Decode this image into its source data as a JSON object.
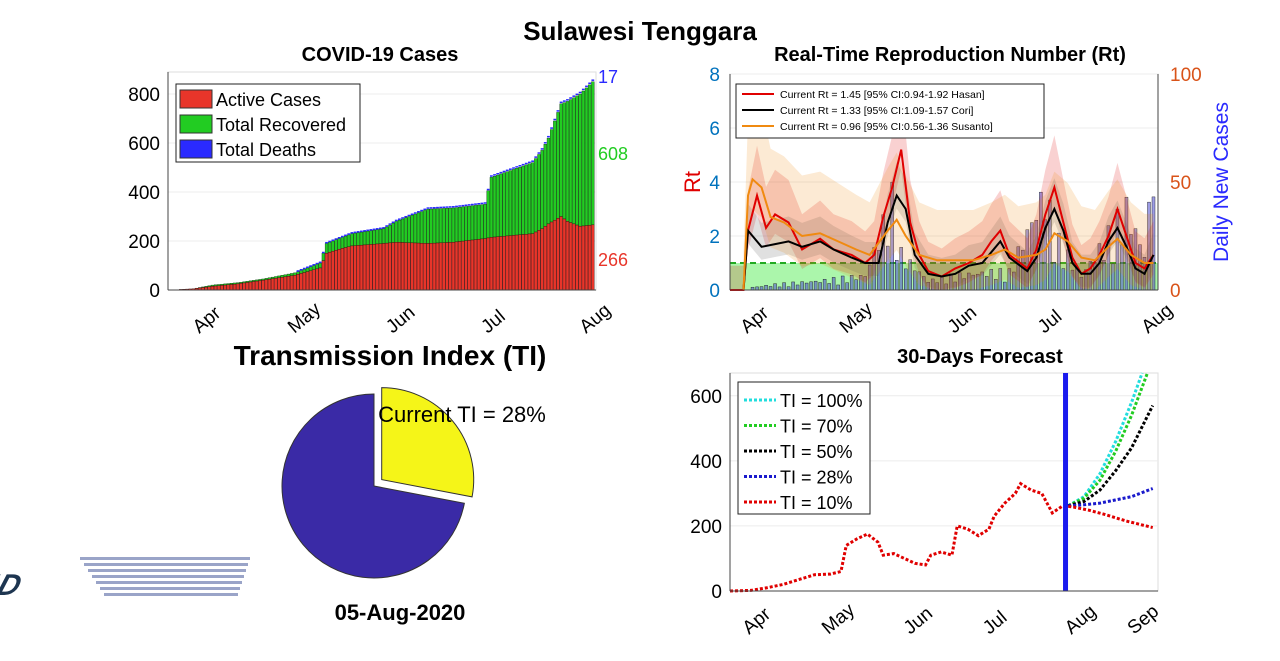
{
  "page": {
    "title": "Sulawesi Tenggara",
    "date": "05-Aug-2020",
    "logo_text": "COVID"
  },
  "colors": {
    "active": "#e8352a",
    "recovered": "#22cc22",
    "deaths": "#2a2aff",
    "rt_hasan": "#e00000",
    "rt_cori": "#000000",
    "rt_susanto": "#f08a10",
    "rt_axis": "#0072bd",
    "cases_axis": "#d95319",
    "pie_main": "#3a2aa6",
    "pie_slice": "#f5f518"
  },
  "chart_data": [
    {
      "id": "cases",
      "type": "bar",
      "title": "COVID-19 Cases",
      "x_tick_labels": [
        "Apr",
        "May",
        "Jun",
        "Jul",
        "Aug"
      ],
      "y_ticks": [
        0,
        200,
        400,
        600,
        800
      ],
      "ylim": [
        0,
        890
      ],
      "legend": [
        "Active Cases",
        "Total Recovered",
        "Total Deaths"
      ],
      "end_labels": {
        "deaths": "17",
        "recovered": "608",
        "active": "266"
      },
      "series": [
        {
          "name": "Active Cases",
          "values_by_day": "see_script"
        },
        {
          "name": "Total Recovered",
          "values_by_day": "see_script"
        },
        {
          "name": "Total Deaths",
          "values_by_day": "see_script"
        }
      ],
      "total_points": [
        [
          0,
          0
        ],
        [
          8,
          5
        ],
        [
          14,
          20
        ],
        [
          22,
          30
        ],
        [
          30,
          45
        ],
        [
          40,
          70
        ],
        [
          48,
          110
        ],
        [
          50,
          190
        ],
        [
          55,
          215
        ],
        [
          58,
          230
        ],
        [
          68,
          250
        ],
        [
          72,
          280
        ],
        [
          82,
          330
        ],
        [
          90,
          335
        ],
        [
          100,
          350
        ],
        [
          102,
          460
        ],
        [
          115,
          520
        ],
        [
          118,
          570
        ],
        [
          120,
          620
        ],
        [
          124,
          760
        ],
        [
          126,
          770
        ],
        [
          130,
          800
        ],
        [
          134,
          850
        ]
      ],
      "active_points": [
        [
          0,
          0
        ],
        [
          8,
          5
        ],
        [
          14,
          15
        ],
        [
          22,
          25
        ],
        [
          30,
          40
        ],
        [
          40,
          60
        ],
        [
          48,
          90
        ],
        [
          50,
          150
        ],
        [
          55,
          170
        ],
        [
          58,
          180
        ],
        [
          68,
          190
        ],
        [
          72,
          195
        ],
        [
          82,
          190
        ],
        [
          90,
          195
        ],
        [
          100,
          210
        ],
        [
          102,
          215
        ],
        [
          115,
          230
        ],
        [
          118,
          250
        ],
        [
          120,
          270
        ],
        [
          124,
          300
        ],
        [
          126,
          280
        ],
        [
          130,
          260
        ],
        [
          134,
          266
        ]
      ]
    },
    {
      "id": "rt",
      "type": "line",
      "title": "Real-Time Reproduction Number (Rt)",
      "ylabel": "Rt",
      "y2label": "Daily New Cases",
      "x_tick_labels": [
        "Apr",
        "May",
        "Jun",
        "Jul",
        "Aug"
      ],
      "y_ticks": [
        0,
        2,
        4,
        6,
        8
      ],
      "ylim": [
        0,
        8
      ],
      "y2_ticks": [
        0,
        50,
        100
      ],
      "y2lim": [
        0,
        100
      ],
      "legend": [
        "Current Rt = 1.45 [95% CI:0.94-1.92 Hasan]",
        "Current Rt = 1.33 [95% CI:1.09-1.57 Cori]",
        "Current Rt = 0.96 [95% CI:0.56-1.36 Susanto]"
      ],
      "series": [
        {
          "name": "Hasan",
          "points": [
            [
              0,
              0
            ],
            [
              3,
              0
            ],
            [
              4,
              2.2
            ],
            [
              6,
              3.5
            ],
            [
              8,
              2.3
            ],
            [
              10,
              2.8
            ],
            [
              13,
              2.5
            ],
            [
              16,
              1.5
            ],
            [
              20,
              1.9
            ],
            [
              23,
              1.5
            ],
            [
              27,
              1.3
            ],
            [
              30,
              1.0
            ],
            [
              32,
              1.3
            ],
            [
              34,
              2.7
            ],
            [
              36,
              3.8
            ],
            [
              38,
              5.2
            ],
            [
              40,
              2.5
            ],
            [
              42,
              1.3
            ],
            [
              44,
              0.7
            ],
            [
              47,
              0.5
            ],
            [
              50,
              0.8
            ],
            [
              53,
              1.0
            ],
            [
              56,
              1.3
            ],
            [
              58,
              1.8
            ],
            [
              60,
              2.2
            ],
            [
              62,
              1.3
            ],
            [
              66,
              0.8
            ],
            [
              68,
              1.5
            ],
            [
              70,
              2.8
            ],
            [
              72,
              3.8
            ],
            [
              74,
              2.5
            ],
            [
              76,
              1.2
            ],
            [
              78,
              0.6
            ],
            [
              80,
              0.8
            ],
            [
              82,
              1.3
            ],
            [
              84,
              2.0
            ],
            [
              86,
              3.0
            ],
            [
              88,
              2.0
            ],
            [
              90,
              1.0
            ],
            [
              92,
              0.8
            ],
            [
              94,
              1.3
            ]
          ]
        },
        {
          "name": "Cori",
          "points": [
            [
              3,
              0
            ],
            [
              4,
              2.2
            ],
            [
              7,
              1.6
            ],
            [
              10,
              1.7
            ],
            [
              13,
              1.8
            ],
            [
              16,
              1.6
            ],
            [
              20,
              1.8
            ],
            [
              23,
              1.5
            ],
            [
              27,
              1.2
            ],
            [
              30,
              1.0
            ],
            [
              33,
              1.0
            ],
            [
              35,
              2.5
            ],
            [
              37,
              3.5
            ],
            [
              39,
              3.0
            ],
            [
              41,
              1.3
            ],
            [
              44,
              0.6
            ],
            [
              47,
              0.5
            ],
            [
              50,
              0.6
            ],
            [
              53,
              0.9
            ],
            [
              56,
              1.0
            ],
            [
              58,
              1.4
            ],
            [
              60,
              1.8
            ],
            [
              62,
              1.2
            ],
            [
              66,
              0.7
            ],
            [
              68,
              1.2
            ],
            [
              70,
              2.3
            ],
            [
              72,
              3.0
            ],
            [
              74,
              2.2
            ],
            [
              76,
              1.0
            ],
            [
              78,
              0.6
            ],
            [
              80,
              0.6
            ],
            [
              82,
              1.0
            ],
            [
              84,
              1.8
            ],
            [
              86,
              2.3
            ],
            [
              88,
              1.6
            ],
            [
              90,
              0.8
            ],
            [
              92,
              0.6
            ],
            [
              94,
              1.3
            ]
          ]
        },
        {
          "name": "Susanto",
          "points": [
            [
              3,
              0
            ],
            [
              4,
              3.5
            ],
            [
              5,
              4.1
            ],
            [
              7,
              3.8
            ],
            [
              9,
              2.7
            ],
            [
              12,
              2.5
            ],
            [
              16,
              2.0
            ],
            [
              20,
              2.1
            ],
            [
              24,
              1.8
            ],
            [
              28,
              1.5
            ],
            [
              31,
              1.3
            ],
            [
              35,
              2.2
            ],
            [
              37,
              2.6
            ],
            [
              39,
              2.0
            ],
            [
              42,
              1.3
            ],
            [
              46,
              1.1
            ],
            [
              50,
              1.1
            ],
            [
              54,
              1.1
            ],
            [
              58,
              1.3
            ],
            [
              61,
              1.5
            ],
            [
              64,
              1.2
            ],
            [
              68,
              1.3
            ],
            [
              70,
              1.5
            ],
            [
              72,
              2.1
            ],
            [
              75,
              1.8
            ],
            [
              78,
              1.2
            ],
            [
              81,
              1.1
            ],
            [
              84,
              1.6
            ],
            [
              86,
              1.9
            ],
            [
              89,
              1.3
            ],
            [
              92,
              1.0
            ],
            [
              94,
              1.0
            ]
          ]
        }
      ]
    },
    {
      "id": "ti",
      "type": "pie",
      "title": "Transmission Index (TI)",
      "label": "Current TI = 28%",
      "values": [
        28,
        72
      ]
    },
    {
      "id": "forecast",
      "type": "line",
      "title": "30-Days Forecast",
      "x_tick_labels": [
        "Apr",
        "May",
        "Jun",
        "Jul",
        "Aug",
        "Sep"
      ],
      "y_ticks": [
        0,
        200,
        400,
        600
      ],
      "ylim": [
        0,
        670
      ],
      "legend": [
        "TI = 100%",
        "TI = 70%",
        "TI = 50%",
        "TI = 28%",
        "TI = 10%"
      ],
      "series": [
        {
          "name": "TI = 100%",
          "color": "#22dddd",
          "points": [
            [
              128,
              262
            ],
            [
              134,
              290
            ],
            [
              140,
              360
            ],
            [
              146,
              460
            ],
            [
              152,
              580
            ],
            [
              156,
              670
            ]
          ]
        },
        {
          "name": "TI = 70%",
          "color": "#22cc22",
          "points": [
            [
              128,
              262
            ],
            [
              134,
              285
            ],
            [
              140,
              340
            ],
            [
              146,
              430
            ],
            [
              152,
              540
            ],
            [
              158,
              670
            ]
          ]
        },
        {
          "name": "TI = 50%",
          "color": "#000000",
          "points": [
            [
              128,
              262
            ],
            [
              134,
              275
            ],
            [
              140,
              310
            ],
            [
              146,
              370
            ],
            [
              152,
              440
            ],
            [
              160,
              570
            ]
          ]
        },
        {
          "name": "TI = 28%",
          "color": "#1a1acc",
          "points": [
            [
              128,
              262
            ],
            [
              134,
              265
            ],
            [
              140,
              270
            ],
            [
              146,
              280
            ],
            [
              152,
              290
            ],
            [
              160,
              315
            ]
          ]
        },
        {
          "name": "TI = 10%",
          "color": "#e00000",
          "points": [
            [
              0,
              0
            ],
            [
              8,
              2
            ],
            [
              14,
              10
            ],
            [
              20,
              20
            ],
            [
              26,
              35
            ],
            [
              32,
              50
            ],
            [
              38,
              52
            ],
            [
              42,
              60
            ],
            [
              44,
              140
            ],
            [
              48,
              160
            ],
            [
              52,
              175
            ],
            [
              56,
              150
            ],
            [
              58,
              110
            ],
            [
              62,
              115
            ],
            [
              66,
              100
            ],
            [
              70,
              85
            ],
            [
              74,
              80
            ],
            [
              76,
              110
            ],
            [
              80,
              120
            ],
            [
              84,
              110
            ],
            [
              86,
              200
            ],
            [
              90,
              190
            ],
            [
              94,
              170
            ],
            [
              98,
              190
            ],
            [
              100,
              230
            ],
            [
              104,
              270
            ],
            [
              108,
              300
            ],
            [
              110,
              330
            ],
            [
              114,
              310
            ],
            [
              118,
              300
            ],
            [
              122,
              240
            ],
            [
              126,
              262
            ],
            [
              130,
              258
            ],
            [
              136,
              248
            ],
            [
              142,
              235
            ],
            [
              150,
              215
            ],
            [
              160,
              195
            ]
          ]
        }
      ]
    }
  ]
}
